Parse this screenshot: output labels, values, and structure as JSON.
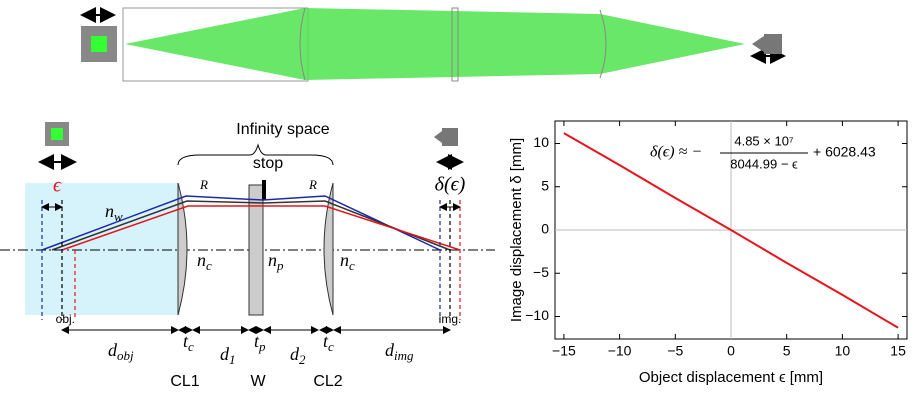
{
  "diagram": {
    "infinity_label": "Infinity space",
    "stop_label": "stop",
    "epsilon": "ϵ",
    "delta": "δ(ϵ)",
    "r_left": "R",
    "r_right": "R",
    "n_w": {
      "base": "n",
      "sub": "w"
    },
    "n_c1": {
      "base": "n",
      "sub": "c"
    },
    "n_p": {
      "base": "n",
      "sub": "p"
    },
    "n_c2": {
      "base": "n",
      "sub": "c"
    },
    "obj": "obj.",
    "img": "img.",
    "d_obj": {
      "base": "d",
      "sub": "obj"
    },
    "t_c1": {
      "base": "t",
      "sub": "c"
    },
    "d_1": {
      "base": "d",
      "sub": "1"
    },
    "t_p": {
      "base": "t",
      "sub": "p"
    },
    "d_2": {
      "base": "d",
      "sub": "2"
    },
    "t_c2": {
      "base": "t",
      "sub": "c"
    },
    "d_img": {
      "base": "d",
      "sub": "img"
    },
    "cl1": "CL1",
    "w": "W",
    "cl2": "CL2"
  },
  "chart_data": {
    "type": "line",
    "x": [
      -15,
      -10,
      -5,
      0,
      5,
      10,
      15
    ],
    "values": [
      11.2,
      7.5,
      3.7,
      0,
      -3.8,
      -7.5,
      -11.3
    ],
    "color": "#e8141c",
    "xlim": [
      -15.8,
      15.8
    ],
    "ylim": [
      -12.6,
      12.6
    ],
    "xticks": [
      {
        "value": -15,
        "label": "−15"
      },
      {
        "value": -10,
        "label": "−10"
      },
      {
        "value": -5,
        "label": "−5"
      },
      0,
      5,
      10,
      15
    ],
    "yticks": [
      {
        "value": -10,
        "label": "−10"
      },
      {
        "value": -5,
        "label": "−5"
      },
      0,
      5,
      10
    ],
    "zero_lines": true,
    "x_label": "Object displacement ϵ [mm]",
    "y_label": "Image displacement δ [mm]",
    "annotation": {
      "lhs": "δ(ϵ) ≈ −",
      "numerator": "4.85 × 10⁷",
      "denominator": "8044.99 − ϵ",
      "rhs": "+ 6028.43"
    }
  }
}
